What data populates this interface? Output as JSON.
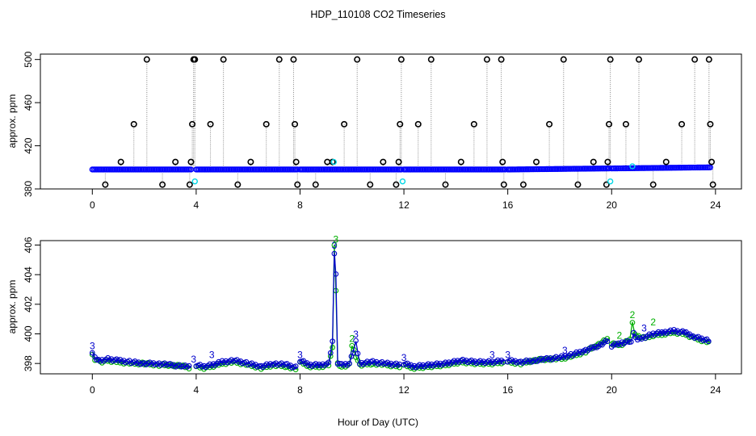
{
  "figure": {
    "title": "HDP_110108  CO2 Timeseries",
    "xlabel": "Hour of Day (UTC)"
  },
  "chart_data": [
    {
      "type": "scatter",
      "ylabel": "approx. ppm",
      "xlim": [
        -2,
        25
      ],
      "ylim": [
        380,
        505
      ],
      "xticks": [
        "0",
        "4",
        "8",
        "12",
        "16",
        "20",
        "24"
      ],
      "yticks": [
        "380",
        "420",
        "460",
        "500"
      ],
      "grid": false,
      "colors": {
        "spike": "#000000",
        "main": "#0000ff",
        "cyan": "#00d7e6",
        "drop": "#888888"
      },
      "baseline_segments": [
        {
          "x": [
            0.0,
            3.8
          ],
          "y": [
            398,
            398
          ]
        },
        {
          "x": [
            4.0,
            7.9
          ],
          "y": [
            398,
            398
          ]
        },
        {
          "x": [
            8.0,
            11.9
          ],
          "y": [
            398,
            398
          ]
        },
        {
          "x": [
            12.0,
            15.9
          ],
          "y": [
            398,
            398
          ]
        },
        {
          "x": [
            16.0,
            19.9
          ],
          "y": [
            398,
            399
          ]
        },
        {
          "x": [
            20.0,
            23.8
          ],
          "y": [
            399,
            400
          ]
        }
      ],
      "spikes": [
        {
          "x": 0.5,
          "y": 384
        },
        {
          "x": 1.1,
          "y": 405
        },
        {
          "x": 1.6,
          "y": 440
        },
        {
          "x": 2.1,
          "y": 500
        },
        {
          "x": 2.7,
          "y": 384
        },
        {
          "x": 3.2,
          "y": 405
        },
        {
          "x": 3.75,
          "y": 384
        },
        {
          "x": 3.8,
          "y": 405
        },
        {
          "x": 3.85,
          "y": 440
        },
        {
          "x": 3.9,
          "y": 500
        },
        {
          "x": 3.95,
          "y": 500
        },
        {
          "x": 4.55,
          "y": 440
        },
        {
          "x": 5.05,
          "y": 500
        },
        {
          "x": 5.6,
          "y": 384
        },
        {
          "x": 6.1,
          "y": 405
        },
        {
          "x": 6.7,
          "y": 440
        },
        {
          "x": 7.2,
          "y": 500
        },
        {
          "x": 7.75,
          "y": 500
        },
        {
          "x": 7.8,
          "y": 440
        },
        {
          "x": 7.85,
          "y": 405
        },
        {
          "x": 7.9,
          "y": 384
        },
        {
          "x": 8.6,
          "y": 384
        },
        {
          "x": 9.05,
          "y": 405
        },
        {
          "x": 9.25,
          "y": 405
        },
        {
          "x": 9.7,
          "y": 440
        },
        {
          "x": 10.2,
          "y": 500
        },
        {
          "x": 10.7,
          "y": 384
        },
        {
          "x": 11.2,
          "y": 405
        },
        {
          "x": 11.7,
          "y": 384
        },
        {
          "x": 11.8,
          "y": 405
        },
        {
          "x": 11.85,
          "y": 440
        },
        {
          "x": 11.9,
          "y": 500
        },
        {
          "x": 12.55,
          "y": 440
        },
        {
          "x": 13.05,
          "y": 500
        },
        {
          "x": 13.6,
          "y": 384
        },
        {
          "x": 14.2,
          "y": 405
        },
        {
          "x": 14.7,
          "y": 440
        },
        {
          "x": 15.2,
          "y": 500
        },
        {
          "x": 15.75,
          "y": 500
        },
        {
          "x": 15.8,
          "y": 405
        },
        {
          "x": 15.85,
          "y": 384
        },
        {
          "x": 16.6,
          "y": 384
        },
        {
          "x": 17.1,
          "y": 405
        },
        {
          "x": 17.6,
          "y": 440
        },
        {
          "x": 18.15,
          "y": 500
        },
        {
          "x": 18.7,
          "y": 384
        },
        {
          "x": 19.3,
          "y": 405
        },
        {
          "x": 19.8,
          "y": 384
        },
        {
          "x": 19.85,
          "y": 405
        },
        {
          "x": 19.9,
          "y": 440
        },
        {
          "x": 19.95,
          "y": 500
        },
        {
          "x": 20.55,
          "y": 440
        },
        {
          "x": 21.05,
          "y": 500
        },
        {
          "x": 21.6,
          "y": 384
        },
        {
          "x": 22.1,
          "y": 405
        },
        {
          "x": 22.7,
          "y": 440
        },
        {
          "x": 23.2,
          "y": 500
        },
        {
          "x": 23.75,
          "y": 500
        },
        {
          "x": 23.8,
          "y": 440
        },
        {
          "x": 23.85,
          "y": 405
        },
        {
          "x": 23.9,
          "y": 384
        }
      ],
      "cyan_points": [
        {
          "x": 3.95,
          "y": 387
        },
        {
          "x": 11.95,
          "y": 387
        },
        {
          "x": 19.95,
          "y": 387
        },
        {
          "x": 9.3,
          "y": 405
        },
        {
          "x": 20.8,
          "y": 401
        }
      ]
    },
    {
      "type": "line",
      "ylabel": "approx. ppm",
      "xlim": [
        -2,
        25
      ],
      "ylim": [
        397.3,
        406.3
      ],
      "xticks": [
        "0",
        "4",
        "8",
        "12",
        "16",
        "20",
        "24"
      ],
      "yticks": [
        "398",
        "400",
        "402",
        "404",
        "406"
      ],
      "grid": false,
      "colors": {
        "series_a": "#0000cc",
        "series_b": "#00b000"
      },
      "series": [
        {
          "segments": [
            {
              "x": [
                0.0,
                0.1,
                0.3,
                0.6,
                1.0,
                1.5,
                2.0,
                2.5,
                3.0,
                3.5,
                3.8
              ],
              "y": [
                398.8,
                398.4,
                398.2,
                398.3,
                398.2,
                398.1,
                398.0,
                398.0,
                397.9,
                397.8,
                397.8
              ]
            },
            {
              "x": [
                4.0,
                4.3,
                4.6,
                5.0,
                5.5,
                6.0,
                6.5,
                7.0,
                7.5,
                7.9
              ],
              "y": [
                397.9,
                397.8,
                397.9,
                398.1,
                398.2,
                398.0,
                397.8,
                398.0,
                397.9,
                397.7
              ]
            },
            {
              "x": [
                8.0,
                8.4,
                8.8,
                9.1,
                9.25,
                9.32,
                9.38,
                9.45,
                9.6,
                9.9,
                10.05,
                10.15,
                10.3,
                10.8,
                11.3,
                11.9
              ],
              "y": [
                398.2,
                397.9,
                397.9,
                398.0,
                399.5,
                405.5,
                404.0,
                398.0,
                397.9,
                398.0,
                398.8,
                399.5,
                398.0,
                398.1,
                398.0,
                397.9
              ]
            },
            {
              "x": [
                12.0,
                12.4,
                13.0,
                13.6,
                14.2,
                14.8,
                15.4,
                15.9
              ],
              "y": [
                398.0,
                397.8,
                397.9,
                398.0,
                398.2,
                398.1,
                398.1,
                398.2
              ]
            },
            {
              "x": [
                16.0,
                16.5,
                17.0,
                17.5,
                18.0,
                18.5,
                19.0,
                19.5,
                19.9
              ],
              "y": [
                398.2,
                398.1,
                398.2,
                398.3,
                398.4,
                398.6,
                398.9,
                399.2,
                399.6
              ]
            },
            {
              "x": [
                20.0,
                20.4,
                20.75,
                20.85,
                21.0,
                21.3,
                21.6,
                22.0,
                22.4,
                22.8,
                23.2,
                23.8
              ],
              "y": [
                399.2,
                399.4,
                399.5,
                400.0,
                399.6,
                399.8,
                400.0,
                400.1,
                400.2,
                400.1,
                399.8,
                399.5
              ]
            }
          ]
        },
        {
          "segments": [
            {
              "x": [
                0.0,
                0.1,
                0.3,
                0.6,
                1.0,
                1.5,
                2.0,
                2.5,
                3.0,
                3.5,
                3.8
              ],
              "y": [
                398.6,
                398.3,
                398.1,
                398.2,
                398.1,
                398.0,
                398.0,
                397.9,
                397.9,
                397.8,
                397.7
              ]
            },
            {
              "x": [
                4.0,
                4.3,
                4.6,
                5.0,
                5.5,
                6.0,
                6.5,
                7.0,
                7.5,
                7.9
              ],
              "y": [
                397.8,
                397.7,
                397.8,
                398.0,
                398.1,
                397.9,
                397.7,
                397.9,
                397.8,
                397.6
              ]
            },
            {
              "x": [
                8.0,
                8.4,
                8.8,
                9.1,
                9.25,
                9.32,
                9.38,
                9.45,
                9.6,
                9.9,
                10.0,
                10.15,
                10.3,
                10.8,
                11.3,
                11.9
              ],
              "y": [
                398.1,
                397.8,
                397.8,
                397.9,
                399.0,
                406.0,
                403.0,
                398.0,
                397.8,
                397.9,
                399.2,
                398.5,
                397.9,
                398.0,
                397.9,
                397.8
              ]
            },
            {
              "x": [
                12.0,
                12.4,
                13.0,
                13.6,
                14.2,
                14.8,
                15.4,
                15.9
              ],
              "y": [
                397.9,
                397.7,
                397.8,
                397.9,
                398.1,
                398.0,
                398.0,
                398.1
              ]
            },
            {
              "x": [
                16.0,
                16.5,
                17.0,
                17.5,
                18.0,
                18.5,
                19.0,
                19.5,
                19.9
              ],
              "y": [
                398.1,
                398.0,
                398.2,
                398.3,
                398.3,
                398.5,
                398.8,
                399.3,
                399.7
              ]
            },
            {
              "x": [
                20.0,
                20.4,
                20.7,
                20.8,
                20.9,
                21.3,
                21.6,
                22.0,
                22.4,
                22.8,
                23.2,
                23.8
              ],
              "y": [
                399.3,
                399.3,
                399.6,
                400.8,
                399.9,
                399.7,
                399.9,
                400.0,
                400.1,
                400.0,
                399.7,
                399.4
              ]
            }
          ]
        }
      ],
      "labels": [
        {
          "x": 0.0,
          "y": 398.8,
          "text": "3",
          "series": 0
        },
        {
          "x": 3.9,
          "y": 397.9,
          "text": "3",
          "series": 0
        },
        {
          "x": 4.6,
          "y": 398.2,
          "text": "3",
          "series": 0
        },
        {
          "x": 8.0,
          "y": 398.2,
          "text": "3",
          "series": 0
        },
        {
          "x": 9.32,
          "y": 405.6,
          "text": "3",
          "series": 0
        },
        {
          "x": 9.38,
          "y": 406.0,
          "text": "3",
          "series": 1
        },
        {
          "x": 10.15,
          "y": 399.6,
          "text": "3",
          "series": 0
        },
        {
          "x": 10.0,
          "y": 399.3,
          "text": "2",
          "series": 1
        },
        {
          "x": 12.0,
          "y": 398.0,
          "text": "3",
          "series": 0
        },
        {
          "x": 15.4,
          "y": 398.2,
          "text": "3",
          "series": 0
        },
        {
          "x": 16.0,
          "y": 398.2,
          "text": "3",
          "series": 0
        },
        {
          "x": 18.2,
          "y": 398.5,
          "text": "3",
          "series": 0
        },
        {
          "x": 20.3,
          "y": 399.5,
          "text": "2",
          "series": 1
        },
        {
          "x": 20.8,
          "y": 400.9,
          "text": "2",
          "series": 1
        },
        {
          "x": 21.25,
          "y": 400.0,
          "text": "3",
          "series": 0
        },
        {
          "x": 21.6,
          "y": 400.4,
          "text": "2",
          "series": 1
        }
      ]
    }
  ]
}
